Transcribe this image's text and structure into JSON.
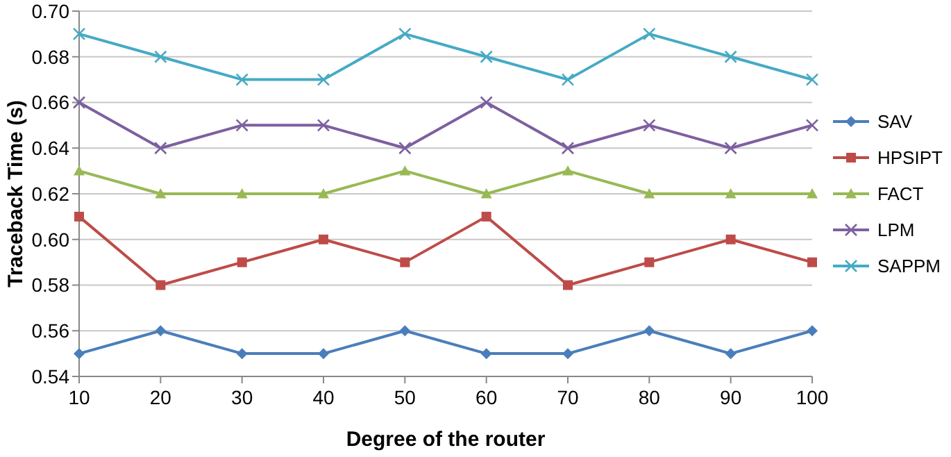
{
  "chart_data": {
    "type": "line",
    "xlabel": "Degree of the router",
    "ylabel": "Traceback Time (s)",
    "x": [
      10,
      20,
      30,
      40,
      50,
      60,
      70,
      80,
      90,
      100
    ],
    "xlim": [
      10,
      100
    ],
    "xticks": [
      10,
      20,
      30,
      40,
      50,
      60,
      70,
      80,
      90,
      100
    ],
    "ylim": [
      0.54,
      0.7
    ],
    "yticks": [
      0.54,
      0.56,
      0.58,
      {
        "value": 0.6,
        "label": "0.60"
      },
      0.62,
      0.64,
      0.66,
      0.68,
      {
        "value": 0.7,
        "label": "0.70"
      }
    ],
    "grid": "y",
    "legend": "right",
    "series": [
      {
        "name": "SAV",
        "color": "#4a7ebb",
        "marker": "diamond",
        "values": [
          0.55,
          0.56,
          0.55,
          0.55,
          0.56,
          0.55,
          0.55,
          0.56,
          0.55,
          0.56
        ]
      },
      {
        "name": "HPSIPT",
        "color": "#be4b48",
        "marker": "square",
        "values": [
          0.61,
          0.58,
          0.59,
          0.6,
          0.59,
          0.61,
          0.58,
          0.59,
          0.6,
          0.59
        ]
      },
      {
        "name": "FACT",
        "color": "#98b954",
        "marker": "triangle",
        "values": [
          0.63,
          0.62,
          0.62,
          0.62,
          0.63,
          0.62,
          0.63,
          0.62,
          0.62,
          0.62
        ]
      },
      {
        "name": "LPM",
        "color": "#7d60a0",
        "marker": "cross",
        "values": [
          0.66,
          0.64,
          0.65,
          0.65,
          0.64,
          0.66,
          0.64,
          0.65,
          0.64,
          0.65
        ]
      },
      {
        "name": "SAPPM",
        "color": "#46aac5",
        "marker": "cross",
        "values": [
          0.69,
          0.68,
          0.67,
          0.67,
          0.69,
          0.68,
          0.67,
          0.69,
          0.68,
          0.67
        ]
      }
    ]
  }
}
